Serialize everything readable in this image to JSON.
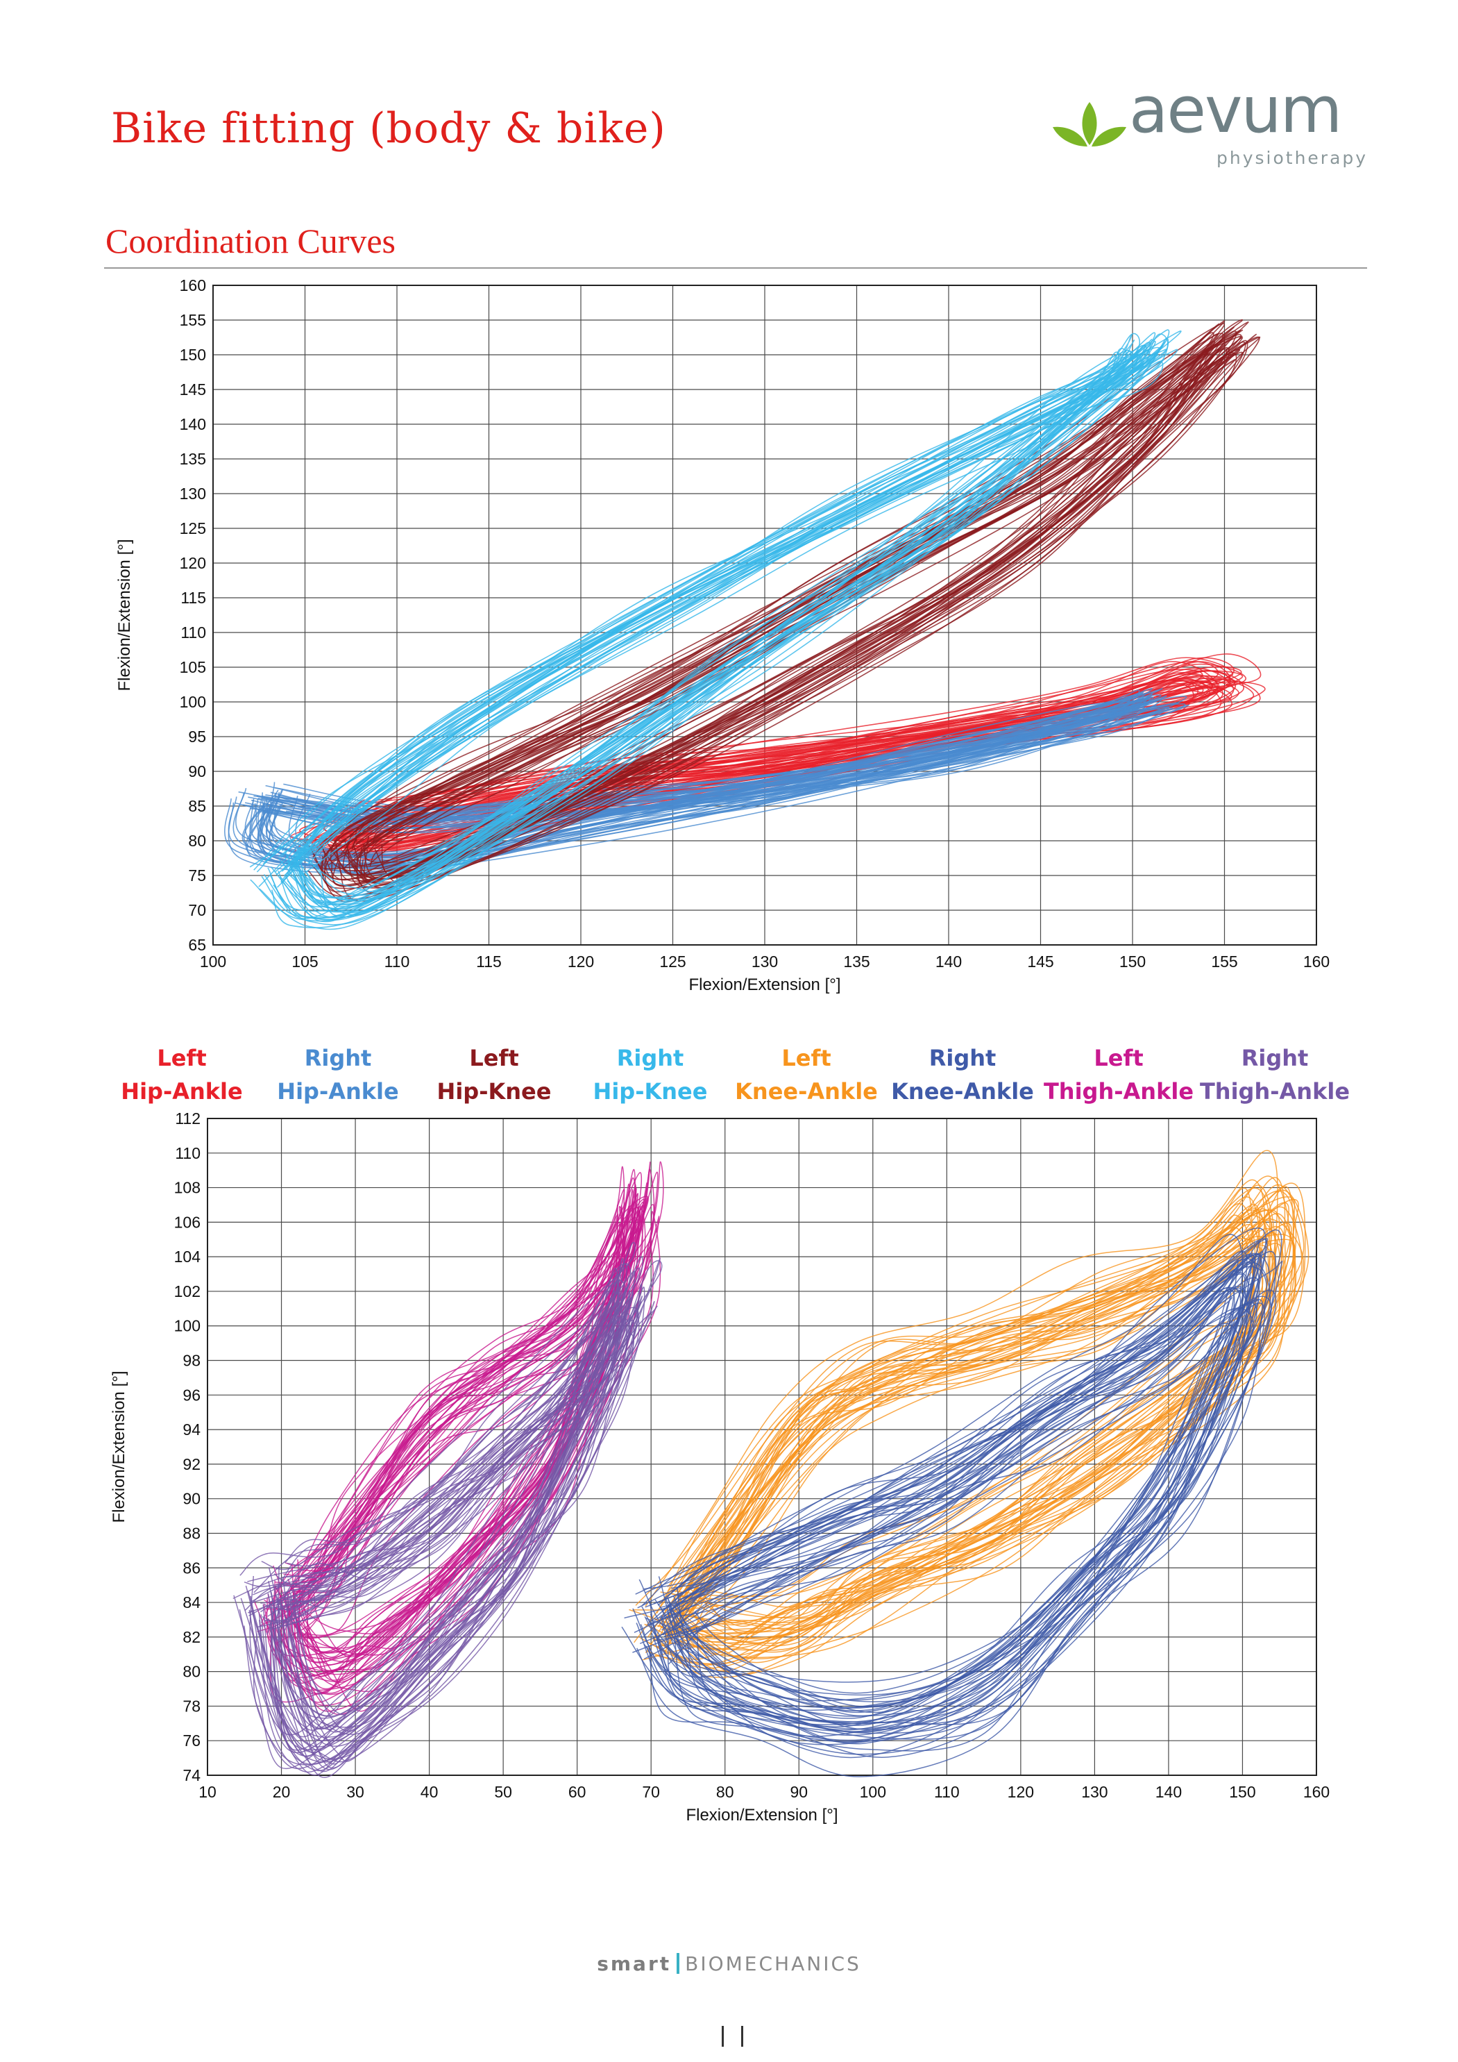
{
  "header": {
    "doc_title": "Bike fitting (body & bike)",
    "section_title": "Coordination Curves",
    "logo": {
      "word": "aevum",
      "sub": "physiotherapy",
      "leaf_color": "#7bb526",
      "text_color": "#6f8085"
    }
  },
  "footer": {
    "brand_bold": "smart",
    "brand_light": "BIOMECHANICS"
  },
  "chart_data": [
    {
      "type": "line",
      "title": "",
      "xlabel": "Flexion/Extension [°]",
      "ylabel": "Flexion/Extension [°]",
      "xlim": [
        100,
        160
      ],
      "ylim": [
        65,
        160
      ],
      "x_ticks": [
        100,
        105,
        110,
        115,
        120,
        125,
        130,
        135,
        140,
        145,
        150,
        155,
        160
      ],
      "y_ticks": [
        65,
        70,
        75,
        80,
        85,
        90,
        95,
        100,
        105,
        110,
        115,
        120,
        125,
        130,
        135,
        140,
        145,
        150,
        155,
        160
      ],
      "grid": true,
      "series": [
        {
          "name": "Left Hip-Ankle",
          "color": "#e8202a",
          "x": [
            110,
            120,
            130,
            140,
            148,
            153,
            155,
            151,
            140,
            130,
            120,
            110,
            106,
            110
          ],
          "y": [
            84,
            89,
            92,
            96,
            100,
            104,
            102,
            99,
            95,
            90,
            86,
            80,
            80,
            84
          ]
        },
        {
          "name": "Right Hip-Ankle",
          "color": "#4a8bd0",
          "x": [
            103,
            110,
            120,
            130,
            140,
            148,
            151,
            148,
            140,
            130,
            120,
            110,
            103,
            103
          ],
          "y": [
            86,
            83,
            85,
            88,
            92,
            97,
            100,
            98,
            93,
            87,
            82,
            77,
            79,
            86
          ]
        },
        {
          "name": "Left Hip-Knee",
          "color": "#8b1a1e",
          "x": [
            107,
            109,
            115,
            125,
            135,
            145,
            151,
            155,
            154,
            150,
            143,
            133,
            123,
            113,
            108,
            107
          ],
          "y": [
            78,
            82,
            90,
            103,
            118,
            132,
            144,
            152,
            148,
            136,
            120,
            104,
            90,
            78,
            74,
            78
          ]
        },
        {
          "name": "Right Hip-Knee",
          "color": "#37b8ea",
          "x": [
            104,
            108,
            115,
            125,
            135,
            145,
            150,
            151,
            148,
            140,
            130,
            120,
            110,
            106,
            104
          ],
          "y": [
            76,
            86,
            99,
            114,
            128,
            141,
            148,
            151,
            144,
            126,
            108,
            90,
            73,
            70,
            76
          ]
        }
      ]
    },
    {
      "type": "line",
      "title": "",
      "xlabel": "Flexion/Extension [°]",
      "ylabel": "Flexion/Extension [°]",
      "xlim": [
        10,
        160
      ],
      "ylim": [
        74,
        112
      ],
      "x_ticks": [
        10,
        20,
        30,
        40,
        50,
        60,
        70,
        80,
        90,
        100,
        110,
        120,
        130,
        140,
        150,
        160
      ],
      "y_ticks": [
        74,
        76,
        78,
        80,
        82,
        84,
        86,
        88,
        90,
        92,
        94,
        96,
        98,
        100,
        102,
        104,
        106,
        108,
        110,
        112
      ],
      "grid": true,
      "legend": [
        {
          "side": "Left",
          "joint": "Hip-Ankle",
          "color": "#e8202a"
        },
        {
          "side": "Right",
          "joint": "Hip-Ankle",
          "color": "#4a8bd0"
        },
        {
          "side": "Left",
          "joint": "Hip-Knee",
          "color": "#8b1a1e"
        },
        {
          "side": "Right",
          "joint": "Hip-Knee",
          "color": "#37b8ea"
        },
        {
          "side": "Left",
          "joint": "Knee-Ankle",
          "color": "#f7941d"
        },
        {
          "side": "Right",
          "joint": "Knee-Ankle",
          "color": "#3f5aa8"
        },
        {
          "side": "Left",
          "joint": "Thigh-Ankle",
          "color": "#c8198f"
        },
        {
          "side": "Right",
          "joint": "Thigh-Ankle",
          "color": "#7458a6"
        }
      ],
      "series": [
        {
          "name": "Left Knee-Ankle",
          "color": "#f7941d",
          "x": [
            72,
            80,
            90,
            100,
            115,
            130,
            145,
            153,
            155,
            152,
            145,
            130,
            115,
            100,
            90,
            80,
            72
          ],
          "y": [
            83,
            88,
            94,
            97,
            99,
            101,
            104,
            107,
            104,
            100,
            97,
            92,
            88,
            85,
            83,
            82,
            83
          ]
        },
        {
          "name": "Right Knee-Ankle",
          "color": "#3f5aa8",
          "x": [
            71,
            80,
            95,
            110,
            125,
            140,
            150,
            152,
            148,
            140,
            128,
            115,
            100,
            85,
            75,
            71
          ],
          "y": [
            83,
            85,
            88,
            91,
            95,
            99,
            103,
            102,
            97,
            90,
            84,
            79,
            77,
            78,
            80,
            83
          ]
        },
        {
          "name": "Left Thigh-Ankle",
          "color": "#c8198f",
          "x": [
            21,
            25,
            30,
            40,
            50,
            60,
            66,
            68,
            67,
            62,
            55,
            45,
            35,
            28,
            23,
            21
          ],
          "y": [
            84,
            85,
            88,
            94,
            97,
            100,
            104,
            107,
            103,
            97,
            91,
            86,
            82,
            80,
            81,
            84
          ]
        },
        {
          "name": "Right Thigh-Ankle",
          "color": "#7458a6",
          "x": [
            18,
            22,
            30,
            40,
            50,
            60,
            66,
            67,
            64,
            58,
            50,
            40,
            30,
            24,
            20,
            18
          ],
          "y": [
            84,
            85,
            86,
            89,
            93,
            97,
            101,
            102,
            98,
            92,
            86,
            81,
            77,
            76,
            79,
            84
          ]
        }
      ]
    }
  ]
}
